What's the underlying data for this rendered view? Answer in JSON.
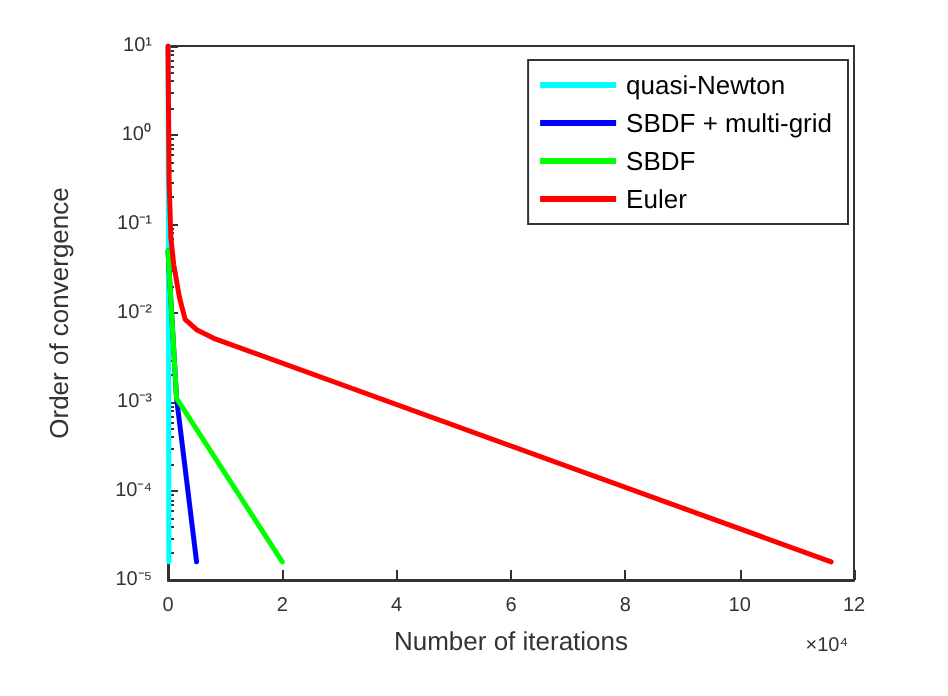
{
  "chart_data": {
    "type": "line",
    "xlabel": "Number of iterations",
    "ylabel": "Order of convergence",
    "log": "y",
    "xlim": [
      0,
      12
    ],
    "ylim": [
      1e-05,
      10
    ],
    "xticks": [
      0,
      2,
      4,
      6,
      8,
      10,
      12
    ],
    "yticks": [
      {
        "value": 1e-05,
        "label": "10⁻⁵"
      },
      {
        "value": 0.0001,
        "label": "10⁻⁴"
      },
      {
        "value": 0.001,
        "label": "10⁻³"
      },
      {
        "value": 0.01,
        "label": "10⁻²"
      },
      {
        "value": 0.1,
        "label": "10⁻¹"
      },
      {
        "value": 1,
        "label": "10⁰"
      },
      {
        "value": 10,
        "label": "10¹"
      }
    ],
    "annotations": [
      "×10⁴"
    ],
    "legend": "top right",
    "grid": false,
    "series": [
      {
        "name": "quasi-Newton",
        "color": "#00ffff",
        "x": [
          0,
          0.01,
          0.015
        ],
        "values": [
          10,
          0.01,
          1.6e-05
        ]
      },
      {
        "name": "SBDF + multi-grid",
        "color": "#0000ff",
        "x": [
          0,
          0.15,
          0.5
        ],
        "values": [
          0.05,
          0.0011,
          1.6e-05
        ]
      },
      {
        "name": "SBDF",
        "color": "#00ff00",
        "x": [
          0,
          0.15,
          2
        ],
        "values": [
          0.05,
          0.0011,
          1.6e-05
        ]
      },
      {
        "name": "Euler",
        "color": "#ff0000",
        "x": [
          0,
          0.02,
          0.05,
          0.1,
          0.2,
          0.3,
          0.5,
          0.8,
          11.6
        ],
        "values": [
          10,
          0.3,
          0.07,
          0.035,
          0.015,
          0.0085,
          0.0065,
          0.0052,
          1.6e-05
        ]
      }
    ]
  }
}
